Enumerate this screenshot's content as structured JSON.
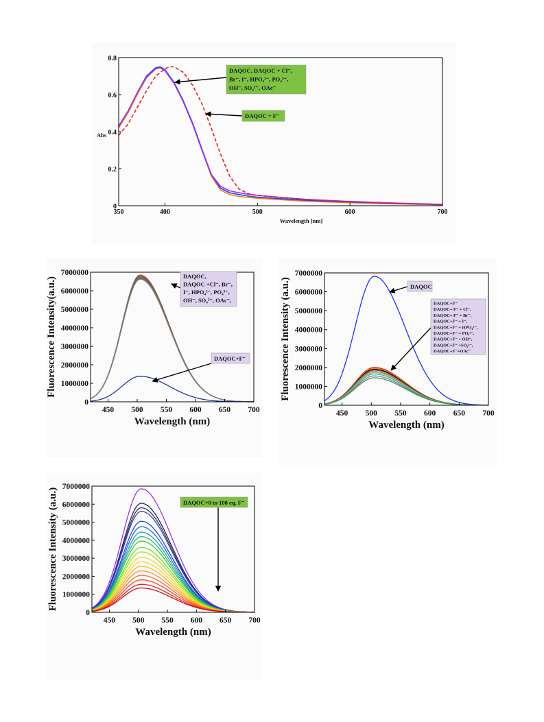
{
  "chart_data": [
    {
      "type": "line",
      "xlabel": "Wavelength [nm]",
      "ylabel": "Abs",
      "xlim": [
        350,
        700
      ],
      "ylim": [
        0,
        0.8
      ],
      "xticks": [
        "350",
        "400",
        "500",
        "600",
        "700"
      ],
      "yticks": [
        "0",
        "0.2",
        "0.4",
        "0.6",
        "0.8"
      ],
      "annotations": [
        {
          "lines": [
            "DAQOC, DAQOC + Cl⁻,",
            "Br⁻, I⁻, HPO₄²⁻, PO₄³⁻,",
            "OH⁻, SO₄²⁻, OAc⁻"
          ],
          "fill": "#7dc242"
        },
        {
          "lines": [
            "DAQOC + F⁻"
          ],
          "fill": "#7dc242"
        }
      ],
      "series": [
        {
          "color": "#ff7f0e",
          "dash": false,
          "x": [
            350,
            360,
            370,
            380,
            390,
            395,
            400,
            410,
            420,
            430,
            440,
            450,
            460,
            470,
            480,
            490,
            500,
            550,
            600,
            650,
            700
          ],
          "y": [
            0.42,
            0.5,
            0.6,
            0.69,
            0.74,
            0.745,
            0.73,
            0.66,
            0.56,
            0.44,
            0.3,
            0.16,
            0.085,
            0.06,
            0.05,
            0.045,
            0.04,
            0.025,
            0.016,
            0.01,
            0.005
          ]
        },
        {
          "color": "#1f3fff",
          "dash": false,
          "x": [
            350,
            360,
            370,
            380,
            390,
            395,
            400,
            410,
            420,
            430,
            440,
            450,
            460,
            470,
            480,
            490,
            500,
            550,
            600,
            650,
            700
          ],
          "y": [
            0.43,
            0.51,
            0.61,
            0.7,
            0.745,
            0.75,
            0.735,
            0.665,
            0.565,
            0.445,
            0.305,
            0.17,
            0.095,
            0.07,
            0.06,
            0.052,
            0.046,
            0.03,
            0.02,
            0.012,
            0.006
          ]
        },
        {
          "color": "#9b30ff",
          "dash": false,
          "x": [
            350,
            360,
            370,
            380,
            390,
            395,
            400,
            410,
            420,
            430,
            440,
            450,
            460,
            470,
            480,
            490,
            500,
            550,
            600,
            650,
            700
          ],
          "y": [
            0.43,
            0.51,
            0.61,
            0.695,
            0.74,
            0.745,
            0.73,
            0.66,
            0.56,
            0.44,
            0.3,
            0.17,
            0.105,
            0.08,
            0.07,
            0.062,
            0.056,
            0.035,
            0.023,
            0.014,
            0.007
          ]
        },
        {
          "color": "#e02020",
          "dash": true,
          "x": [
            350,
            360,
            370,
            380,
            390,
            400,
            405,
            410,
            420,
            430,
            440,
            450,
            460,
            470,
            480,
            490,
            500,
            550,
            600,
            650,
            700
          ],
          "y": [
            0.38,
            0.44,
            0.53,
            0.62,
            0.7,
            0.74,
            0.75,
            0.75,
            0.72,
            0.65,
            0.55,
            0.42,
            0.28,
            0.16,
            0.09,
            0.065,
            0.055,
            0.035,
            0.022,
            0.013,
            0.007
          ]
        }
      ]
    },
    {
      "type": "line",
      "xlabel": "Wavelength (nm)",
      "ylabel": "Fluorescence Intensity(a.u.)",
      "xlim": [
        420,
        700
      ],
      "ylim": [
        0,
        7000000
      ],
      "xticks": [
        "450",
        "500",
        "550",
        "600",
        "650",
        "700"
      ],
      "yticks": [
        "0",
        "1000000",
        "2000000",
        "3000000",
        "4000000",
        "5000000",
        "6000000",
        "7000000"
      ],
      "annotations": [
        {
          "lines": [
            "DAQOC,",
            "DAQOC +Cl⁻, Br⁻,",
            "I⁻, HPO₄²⁻, PO₄³⁻,",
            "OH⁻, SO₄²⁻, OAc⁻,"
          ],
          "fill": "#ddd3ee"
        },
        {
          "lines": [
            "DAQOC+F⁻"
          ],
          "fill": "#ddd3ee"
        }
      ],
      "series": [
        {
          "color": "#e8501a",
          "peak": 6850000,
          "sigma": 40
        },
        {
          "color": "#e02020",
          "peak": 6800000,
          "sigma": 40
        },
        {
          "color": "#1f77b4",
          "peak": 6750000,
          "sigma": 40
        },
        {
          "color": "#2ca02c",
          "peak": 6700000,
          "sigma": 40
        },
        {
          "color": "#555555",
          "peak": 6650000,
          "sigma": 40
        },
        {
          "color": "#888888",
          "peak": 6620000,
          "sigma": 40
        },
        {
          "color": "#1f3a93",
          "peak": 1380000,
          "sigma": 40
        }
      ]
    },
    {
      "type": "line",
      "xlabel": "Wavelength (nm)",
      "ylabel": "Fluorescence Intensity (a.u.)",
      "xlim": [
        420,
        700
      ],
      "ylim": [
        0,
        7000000
      ],
      "xticks": [
        "450",
        "500",
        "550",
        "600",
        "650",
        "700"
      ],
      "yticks": [
        "0",
        "1000000",
        "2000000",
        "3000000",
        "4000000",
        "5000000",
        "6000000",
        "7000000"
      ],
      "annotations": [
        {
          "lines": [
            "DAQOC"
          ],
          "fill": "#ddd3ee"
        },
        {
          "lines": [
            "DAQOC+F⁻",
            "DAQOC+ F⁻ + Cl⁻,",
            "DAQOC+ F⁻ + Br⁻,",
            "DAQOC+F⁻ + I⁻,",
            "DAQOC+F⁻ + HPO₄²⁻,",
            "DAQOC+F⁻ + PO₄³⁻,",
            "DAQOC+F⁻ + OH⁻,",
            "DAQOC+F⁻ +SO₄²⁻,",
            "DAQOC+F⁻+OAc⁻"
          ],
          "fill": "#ddd3ee"
        }
      ],
      "series": [
        {
          "color": "#1f2fff",
          "peak": 6820000,
          "sigma": 42
        },
        {
          "color": "#e02020",
          "peak": 2000000,
          "sigma": 42
        },
        {
          "color": "#ff7f0e",
          "peak": 1950000,
          "sigma": 42
        },
        {
          "color": "#000000",
          "peak": 1900000,
          "sigma": 42
        },
        {
          "color": "#8c564b",
          "peak": 1850000,
          "sigma": 42
        },
        {
          "color": "#7f7f7f",
          "peak": 1780000,
          "sigma": 42
        },
        {
          "color": "#bcbd22",
          "peak": 1720000,
          "sigma": 42
        },
        {
          "color": "#17becf",
          "peak": 1650000,
          "sigma": 42
        },
        {
          "color": "#9467bd",
          "peak": 1550000,
          "sigma": 42
        },
        {
          "color": "#2ca02c",
          "peak": 1450000,
          "sigma": 42
        }
      ]
    },
    {
      "type": "line",
      "xlabel": "Wavelength (nm)",
      "ylabel": "Fluorescence Intensity (a.u.)",
      "xlim": [
        420,
        700
      ],
      "ylim": [
        0,
        7000000
      ],
      "xticks": [
        "450",
        "500",
        "550",
        "600",
        "650",
        "700"
      ],
      "yticks": [
        "0",
        "1000000",
        "2000000",
        "3000000",
        "4000000",
        "5000000",
        "6000000",
        "7000000"
      ],
      "annotations": [
        {
          "lines": [
            "DAQOC+0 to 100 eq. F⁻"
          ],
          "fill": "#7dc242"
        }
      ],
      "series": [
        {
          "color": "#9b30ff",
          "peak": 6850000,
          "sigma": 42
        },
        {
          "color": "#1f2a60",
          "peak": 6050000,
          "sigma": 42
        },
        {
          "color": "#333366",
          "peak": 5800000,
          "sigma": 42
        },
        {
          "color": "#3a3fbf",
          "peak": 5600000,
          "sigma": 42
        },
        {
          "color": "#2040ff",
          "peak": 5050000,
          "sigma": 42
        },
        {
          "color": "#1e6bd6",
          "peak": 4750000,
          "sigma": 42
        },
        {
          "color": "#17a2c8",
          "peak": 4450000,
          "sigma": 42
        },
        {
          "color": "#20c060",
          "peak": 4200000,
          "sigma": 42
        },
        {
          "color": "#2fd02f",
          "peak": 3950000,
          "sigma": 42
        },
        {
          "color": "#70dd20",
          "peak": 3600000,
          "sigma": 42
        },
        {
          "color": "#a8e020",
          "peak": 3350000,
          "sigma": 42
        },
        {
          "color": "#e2e020",
          "peak": 3050000,
          "sigma": 42
        },
        {
          "color": "#ffd020",
          "peak": 2800000,
          "sigma": 42
        },
        {
          "color": "#ffb020",
          "peak": 2550000,
          "sigma": 42
        },
        {
          "color": "#ff9020",
          "peak": 2300000,
          "sigma": 42
        },
        {
          "color": "#ff6a20",
          "peak": 2050000,
          "sigma": 42
        },
        {
          "color": "#ff4020",
          "peak": 1800000,
          "sigma": 42
        },
        {
          "color": "#f02020",
          "peak": 1550000,
          "sigma": 42
        },
        {
          "color": "#d01010",
          "peak": 1350000,
          "sigma": 42
        }
      ]
    }
  ]
}
